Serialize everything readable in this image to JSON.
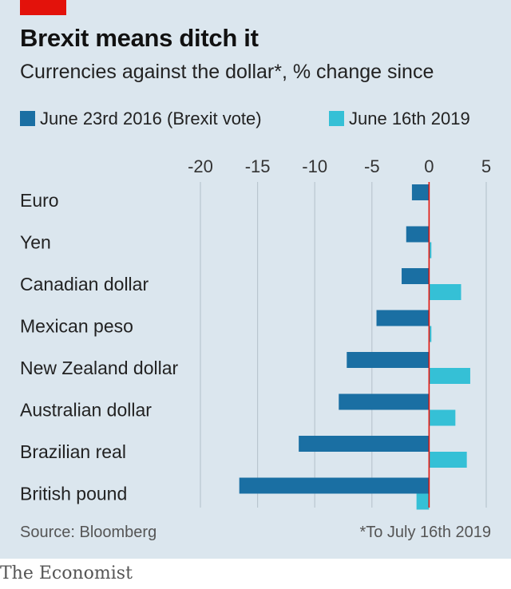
{
  "header": {
    "title": "Brexit means ditch it",
    "subtitle": "Currencies against the dollar*, % change since"
  },
  "legend": [
    {
      "label": "June 23rd 2016 (Brexit vote)",
      "color": "#1a6fa3"
    },
    {
      "label": "June 16th 2019",
      "color": "#35c0d6"
    }
  ],
  "footer": {
    "source": "Source: Bloomberg",
    "note": "*To July 16th 2019",
    "brand": "The Economist"
  },
  "chart_data": {
    "type": "bar",
    "orientation": "horizontal",
    "categories": [
      "Euro",
      "Yen",
      "Canadian dollar",
      "Mexican peso",
      "New Zealand dollar",
      "Australian dollar",
      "Brazilian real",
      "British pound"
    ],
    "series": [
      {
        "name": "June 23rd 2016 (Brexit vote)",
        "color": "#1a6fa3",
        "values": [
          -1.5,
          -2.0,
          -2.4,
          -4.6,
          -7.2,
          -7.9,
          -11.4,
          -16.6
        ]
      },
      {
        "name": "June 16th 2019",
        "color": "#35c0d6",
        "values": [
          0.0,
          0.2,
          2.8,
          0.2,
          3.6,
          2.3,
          3.3,
          -1.1
        ]
      }
    ],
    "xlim": [
      -20,
      5
    ],
    "xticks": [
      -20,
      -15,
      -10,
      -5,
      0,
      5
    ],
    "zero_line_color": "#e3120b",
    "grid": true
  }
}
